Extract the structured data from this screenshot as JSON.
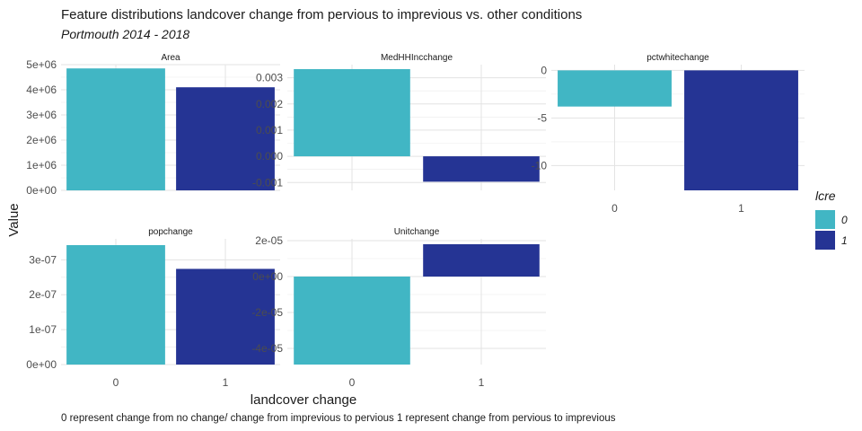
{
  "title": "Feature distributions landcover change from pervious to imprevious vs. other conditions",
  "subtitle": "Portmouth 2014 - 2018",
  "caption": "0 represent change from no change/ change from imprevious to pervious 1 represent change from pervious to imprevious",
  "chart_data": {
    "type": "bar",
    "xlabel": "landcover change",
    "ylabel": "Value",
    "legend": {
      "title": "lcre",
      "position": "right",
      "entries": [
        {
          "label": "0",
          "color": "#41B6C4"
        },
        {
          "label": "1",
          "color": "#253494"
        }
      ]
    },
    "grid": true,
    "categories": [
      "0",
      "1"
    ],
    "facets": [
      {
        "name": "Area",
        "values": [
          4850000,
          4100000
        ],
        "ylim": [
          0,
          5000000
        ],
        "ticks": [
          0,
          1000000,
          2000000,
          3000000,
          4000000,
          5000000
        ],
        "tick_labels": [
          "0e+00",
          "1e+06",
          "2e+06",
          "3e+06",
          "4e+06",
          "5e+06"
        ]
      },
      {
        "name": "MedHHIncchange",
        "values": [
          0.00333,
          -0.00097
        ],
        "ylim": [
          -0.0013,
          0.0035
        ],
        "ticks": [
          -0.001,
          0.0,
          0.001,
          0.002,
          0.003
        ],
        "tick_labels": [
          "-0.001",
          "0.000",
          "0.001",
          "0.002",
          "0.003"
        ]
      },
      {
        "name": "pctwhitechange",
        "values": [
          -3.8,
          -12.6
        ],
        "ylim": [
          -12.6,
          0.6
        ],
        "ticks": [
          -10,
          -5,
          0
        ],
        "tick_labels": [
          "-10",
          "-5",
          "0"
        ]
      },
      {
        "name": "popchange",
        "values": [
          3.42e-07,
          2.74e-07
        ],
        "ylim": [
          0,
          3.6e-07
        ],
        "ticks": [
          0,
          1e-07,
          2e-07,
          3e-07
        ],
        "tick_labels": [
          "0e+00",
          "1e-07",
          "2e-07",
          "3e-07"
        ]
      },
      {
        "name": "Unitchange",
        "values": [
          -4.9e-05,
          1.8e-05
        ],
        "ylim": [
          -4.9e-05,
          2.1e-05
        ],
        "ticks": [
          -4e-05,
          -2e-05,
          0,
          2e-05
        ],
        "tick_labels": [
          "-4e-05",
          "-2e-05",
          "0e+00",
          "2e-05"
        ]
      }
    ]
  }
}
